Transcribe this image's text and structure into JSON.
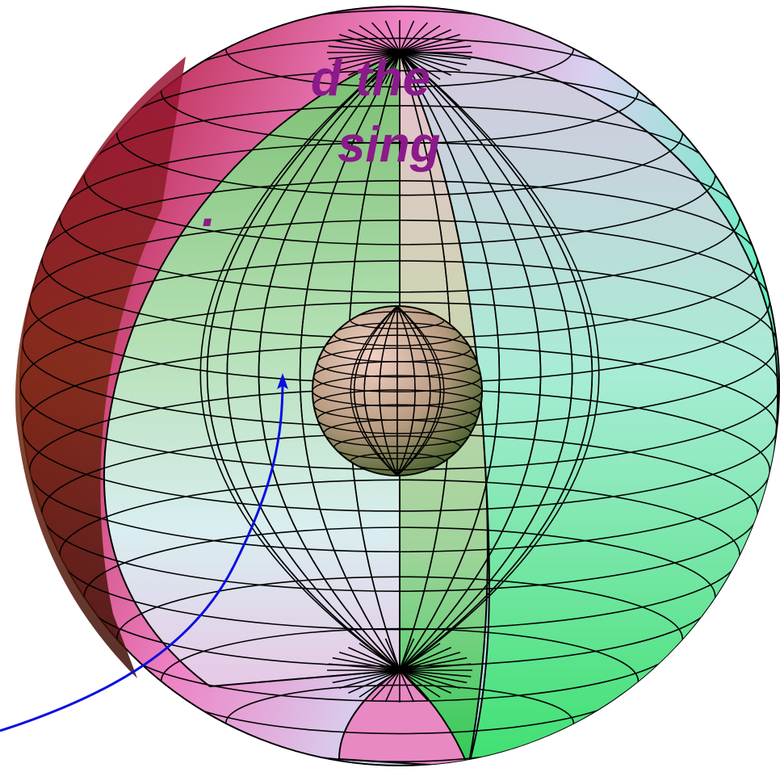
{
  "caption": {
    "lines": [
      "d the",
      "sing",
      "."
    ],
    "color": "#8b1a8b"
  },
  "colors": {
    "arrow": "#0a10e0",
    "mesh_line": "#000000",
    "outer_shell_left": "#c21d52",
    "outer_shell_right": "#62e8b5",
    "inner_cut_face": "#a8d0a0",
    "inner_sphere": "#c8a88a"
  }
}
